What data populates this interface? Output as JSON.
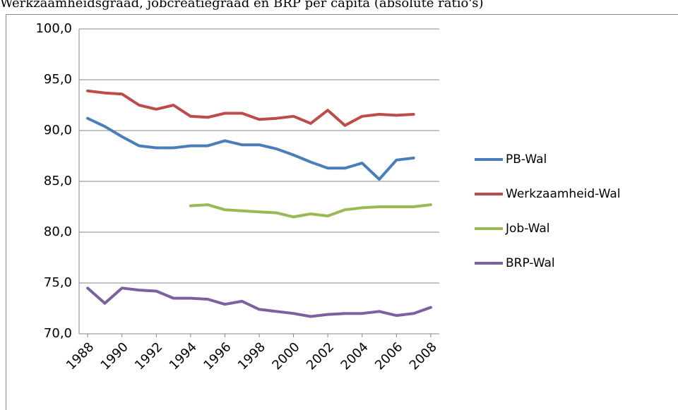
{
  "chart_data": {
    "type": "line",
    "title": "Werkzaamheidsgraad, jobcreatiegraad en BRP per capita (absolute ratio's)",
    "x": [
      1988,
      1989,
      1990,
      1991,
      1992,
      1993,
      1994,
      1995,
      1996,
      1997,
      1998,
      1999,
      2000,
      2001,
      2002,
      2003,
      2004,
      2005,
      2006,
      2007,
      2008
    ],
    "xlim": [
      1987.5,
      2008.5
    ],
    "xticks": [
      1988,
      1990,
      1992,
      1994,
      1996,
      1998,
      2000,
      2002,
      2004,
      2006,
      2008
    ],
    "ylim": [
      70,
      100
    ],
    "yticks": [
      {
        "value": 70,
        "label": "70,0"
      },
      {
        "value": 75,
        "label": "75,0"
      },
      {
        "value": 80,
        "label": "80,0"
      },
      {
        "value": 85,
        "label": "85,0"
      },
      {
        "value": 90,
        "label": "90,0"
      },
      {
        "value": 95,
        "label": "95,0"
      },
      {
        "value": 100,
        "label": "100,0"
      }
    ],
    "grid": true,
    "legend": "right",
    "series": [
      {
        "name": "PB-Wal",
        "color": "#4a7ebb",
        "values": [
          91.2,
          90.4,
          89.4,
          88.5,
          88.3,
          88.3,
          88.5,
          88.5,
          89.0,
          88.6,
          88.6,
          88.2,
          87.6,
          86.9,
          86.3,
          86.3,
          86.8,
          85.2,
          87.1,
          87.3,
          null
        ]
      },
      {
        "name": "Werkzaamheid-Wal",
        "color": "#be4b48",
        "values": [
          93.9,
          93.7,
          93.6,
          92.5,
          92.1,
          92.5,
          91.4,
          91.3,
          91.7,
          91.7,
          91.1,
          91.2,
          91.4,
          90.7,
          92.0,
          90.5,
          91.4,
          91.6,
          91.5,
          91.6,
          null
        ]
      },
      {
        "name": "Job-Wal",
        "color": "#98b954",
        "values": [
          null,
          null,
          null,
          null,
          null,
          null,
          82.6,
          82.7,
          82.2,
          82.1,
          82.0,
          81.9,
          81.5,
          81.8,
          81.6,
          82.2,
          82.4,
          82.5,
          82.5,
          82.5,
          82.7
        ]
      },
      {
        "name": "BRP-Wal",
        "color": "#7d60a0",
        "values": [
          74.5,
          73.0,
          74.5,
          74.3,
          74.2,
          73.5,
          73.5,
          73.4,
          72.9,
          73.2,
          72.4,
          72.2,
          72.0,
          71.7,
          71.9,
          72.0,
          72.0,
          72.2,
          71.8,
          72.0,
          72.6
        ]
      }
    ]
  }
}
